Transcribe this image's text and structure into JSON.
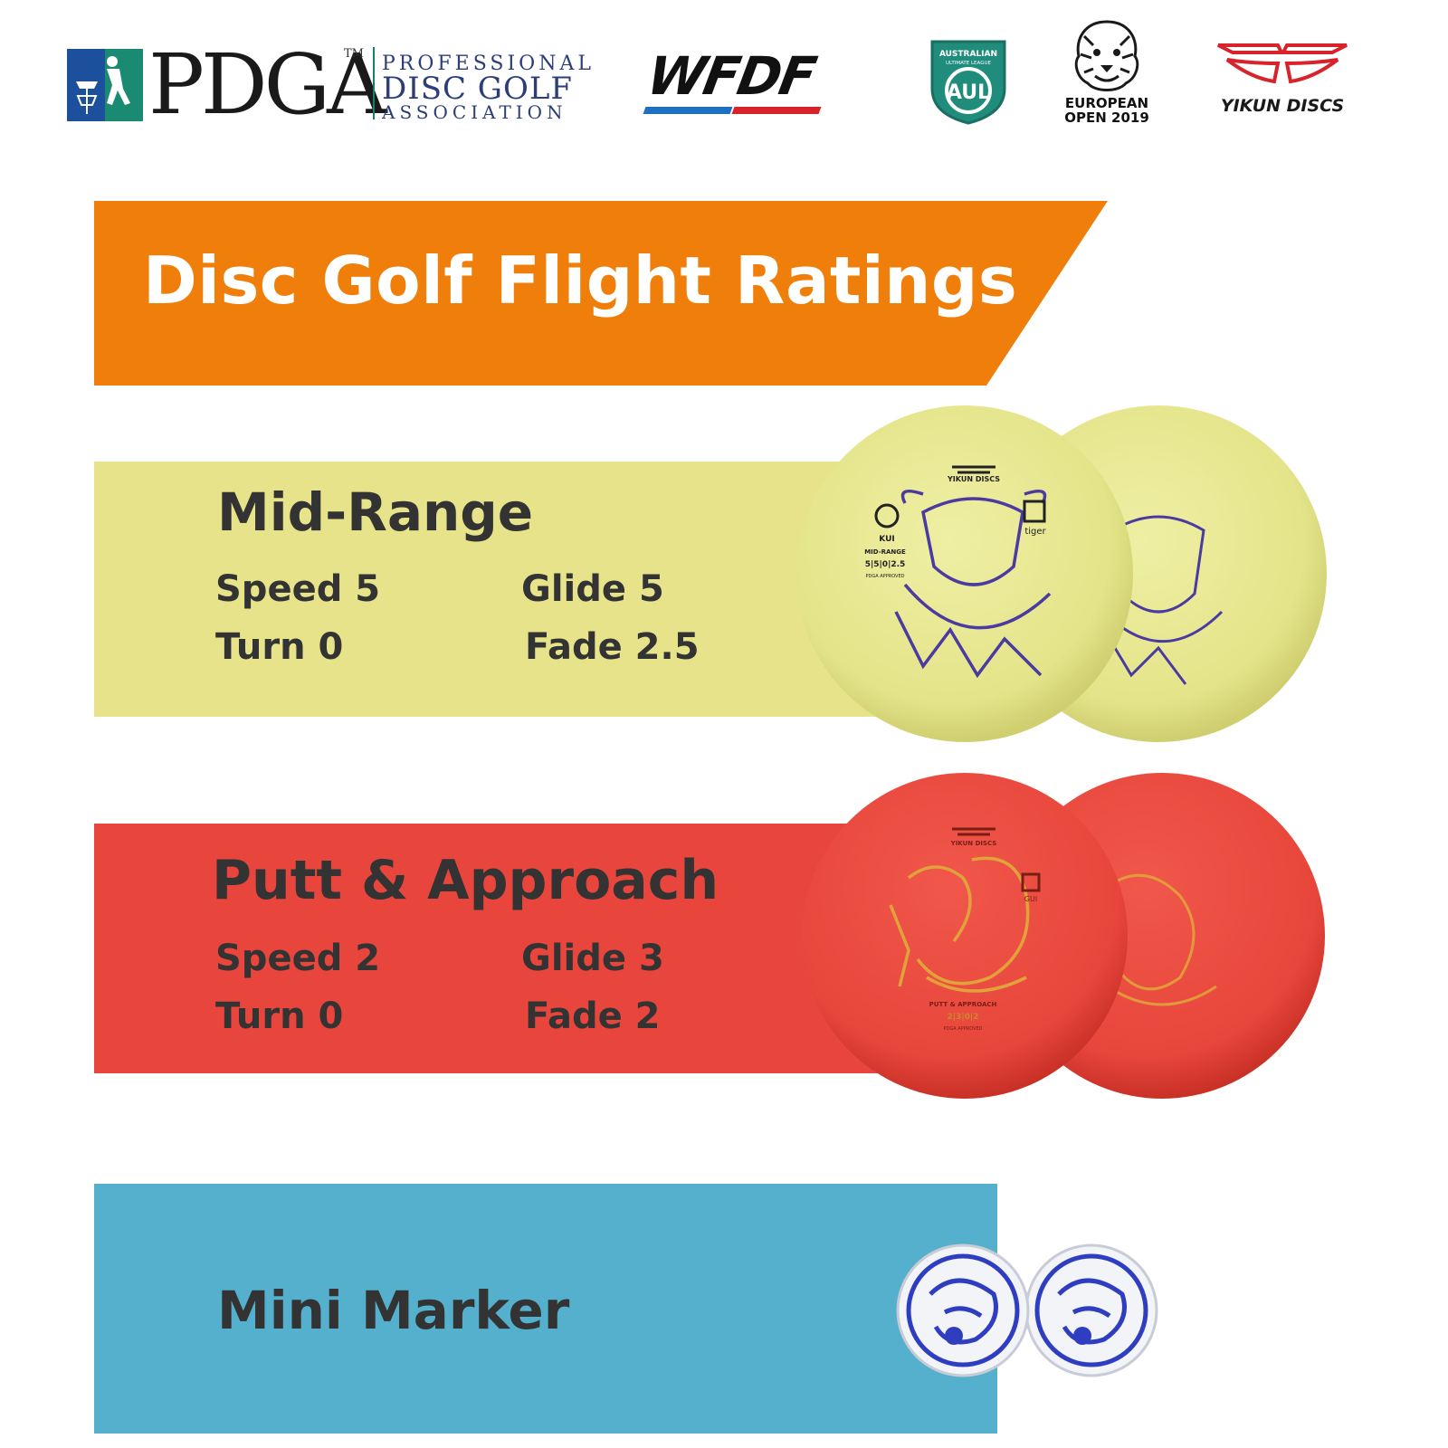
{
  "logos": {
    "pdga": {
      "letters": "PDGA",
      "tm": "TM",
      "line1": "PROFESSIONAL",
      "line2": "DISC GOLF",
      "line3": "ASSOCIATION"
    },
    "wfdf": "WFDF",
    "aul": {
      "line1": "AUSTRALIAN",
      "line2": "ULTIMATE LEAGUE",
      "mark": "AUL"
    },
    "european_open": {
      "line1": "EUROPEAN",
      "line2": "OPEN 2019"
    },
    "yikun": "YIKUN DISCS"
  },
  "banner": {
    "title": "Disc Golf Flight Ratings"
  },
  "categories": [
    {
      "name": "Mid-Range",
      "speed": "Speed 5",
      "glide": "Glide 5",
      "turn": "Turn 0",
      "fade": "Fade 2.5"
    },
    {
      "name": "Putt & Approach",
      "speed": "Speed 2",
      "glide": "Glide 3",
      "turn": "Turn  0",
      "fade": "Fade 2"
    },
    {
      "name": "Mini Marker"
    }
  ],
  "discs": {
    "mid": {
      "brand": "YIKUN DISCS",
      "model": "KUI",
      "type": "MID-RANGE",
      "rating": "5|5|0|2.5",
      "approval": "PDGA APPROVED",
      "series": "tiger"
    },
    "putt": {
      "brand": "YIKUN DISCS",
      "type": "PUTT & APPROACH",
      "rating": "2|3|0|2",
      "approval": "PDGA APPROVED",
      "series": "GUI"
    }
  },
  "colors": {
    "orange": "#ef7f0a",
    "mid_band": "#e6e38a",
    "putt_band": "#e8453c",
    "mini_band": "#54b0cc",
    "mid_disc": "#e9e990",
    "putt_disc": "#ea4a3e",
    "text_dark": "#333333",
    "mini_blue": "#2f3ec0"
  },
  "icons": {
    "pdga": "pdga-basket-player-icon",
    "aul": "aul-shield-icon",
    "lion": "lion-head-icon",
    "yikun": "yikun-wings-icon"
  }
}
